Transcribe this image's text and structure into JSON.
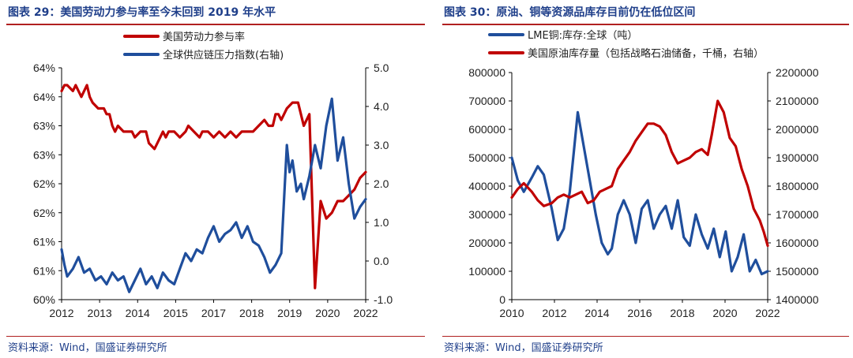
{
  "left": {
    "title": "图表 29：美国劳动力参与率至今未回到 2019 年水平",
    "source": "资料来源：Wind，国盛证券研究所",
    "chart_data": {
      "type": "line",
      "x_ticks": [
        "2012",
        "2013",
        "2014",
        "2015",
        "2017",
        "2018",
        "2019",
        "2020",
        "2022"
      ],
      "x_range": [
        2012.0,
        2022.8
      ],
      "y_left_ticks": [
        "64%",
        "64%",
        "63%",
        "63%",
        "62%",
        "62%",
        "61%",
        "61%",
        "60%"
      ],
      "y_left_range": [
        60.0,
        64.0
      ],
      "y_right_ticks": [
        "5.0",
        "4.0",
        "3.0",
        "2.0",
        "1.0",
        "0.0",
        "-1.0"
      ],
      "y_right_range": [
        -1.0,
        5.0
      ],
      "series": [
        {
          "name": "美国劳动力参与率",
          "axis": "left",
          "color": "#c00000",
          "x": [
            2012.0,
            2012.1,
            2012.2,
            2012.4,
            2012.5,
            2012.6,
            2012.7,
            2012.8,
            2012.9,
            2013.0,
            2013.1,
            2013.3,
            2013.5,
            2013.6,
            2013.7,
            2013.8,
            2013.9,
            2014.0,
            2014.2,
            2014.4,
            2014.5,
            2014.6,
            2014.8,
            2015.0,
            2015.1,
            2015.3,
            2015.5,
            2015.6,
            2015.7,
            2015.8,
            2016.0,
            2016.2,
            2016.4,
            2016.5,
            2016.7,
            2016.9,
            2017.0,
            2017.2,
            2017.4,
            2017.6,
            2017.8,
            2018.0,
            2018.2,
            2018.4,
            2018.6,
            2018.8,
            2019.0,
            2019.2,
            2019.35,
            2019.5,
            2019.6,
            2019.7,
            2019.8,
            2020.0,
            2020.2,
            2020.4,
            2020.6,
            2020.8,
            2021.0,
            2021.2,
            2021.4,
            2021.6,
            2021.8,
            2022.0,
            2022.2,
            2022.4,
            2022.6,
            2022.8
          ],
          "values": [
            63.6,
            63.7,
            63.7,
            63.6,
            63.7,
            63.6,
            63.5,
            63.6,
            63.7,
            63.5,
            63.4,
            63.3,
            63.3,
            63.2,
            63.2,
            63.0,
            62.9,
            63.0,
            62.9,
            62.9,
            62.9,
            62.8,
            62.9,
            62.9,
            62.7,
            62.6,
            62.8,
            62.9,
            62.8,
            62.9,
            62.9,
            62.8,
            62.9,
            63.0,
            62.9,
            62.8,
            62.9,
            62.9,
            62.8,
            62.9,
            62.8,
            62.9,
            62.8,
            62.9,
            62.9,
            62.9,
            63.0,
            63.1,
            63.0,
            63.0,
            63.2,
            63.2,
            63.1,
            63.3,
            63.4,
            63.4,
            63.0,
            63.2,
            60.2,
            61.7,
            61.4,
            61.5,
            61.7,
            61.7,
            61.8,
            61.9,
            62.1,
            62.2
          ]
        },
        {
          "name": "全球供应链压力指数(右轴)",
          "axis": "right",
          "color": "#1f4e9c",
          "x": [
            2012.0,
            2012.1,
            2012.2,
            2012.4,
            2012.6,
            2012.8,
            2013.0,
            2013.2,
            2013.4,
            2013.6,
            2013.8,
            2014.0,
            2014.2,
            2014.4,
            2014.6,
            2014.8,
            2015.0,
            2015.2,
            2015.4,
            2015.6,
            2015.8,
            2016.0,
            2016.2,
            2016.4,
            2016.6,
            2016.8,
            2017.0,
            2017.2,
            2017.4,
            2017.6,
            2017.8,
            2018.0,
            2018.2,
            2018.4,
            2018.6,
            2018.8,
            2019.0,
            2019.2,
            2019.4,
            2019.6,
            2019.8,
            2020.0,
            2020.1,
            2020.2,
            2020.35,
            2020.5,
            2020.6,
            2020.8,
            2021.0,
            2021.2,
            2021.4,
            2021.6,
            2021.8,
            2022.0,
            2022.2,
            2022.4,
            2022.6,
            2022.8
          ],
          "values": [
            0.3,
            -0.1,
            -0.4,
            -0.2,
            0.1,
            -0.3,
            -0.2,
            -0.5,
            -0.4,
            -0.6,
            -0.3,
            -0.5,
            -0.4,
            -0.8,
            -0.5,
            -0.2,
            -0.6,
            -0.4,
            -0.7,
            -0.3,
            -0.5,
            -0.6,
            -0.2,
            0.2,
            0.0,
            0.3,
            0.2,
            0.6,
            0.9,
            0.5,
            0.7,
            0.8,
            1.0,
            0.6,
            0.9,
            0.5,
            0.4,
            0.1,
            -0.3,
            -0.1,
            0.2,
            3.0,
            2.3,
            2.6,
            1.8,
            2.0,
            1.6,
            2.2,
            3.0,
            2.4,
            3.5,
            4.2,
            2.6,
            3.2,
            2.0,
            1.1,
            1.4,
            1.6
          ]
        }
      ]
    }
  },
  "right": {
    "title": "图表 30：原油、铜等资源品库存目前仍在低位区间",
    "source": "资料来源：Wind，国盛证券研究所",
    "chart_data": {
      "type": "line",
      "x_ticks": [
        "2010",
        "2012",
        "2014",
        "2016",
        "2018",
        "2020",
        "2022"
      ],
      "x_range": [
        2010.0,
        2022.8
      ],
      "y_left_ticks": [
        "800000",
        "700000",
        "600000",
        "500000",
        "400000",
        "300000",
        "200000",
        "100000",
        "0"
      ],
      "y_left_range": [
        0,
        800000
      ],
      "y_right_ticks": [
        "2200000",
        "2100000",
        "2000000",
        "1900000",
        "1800000",
        "1700000",
        "1600000",
        "1500000",
        "1400000"
      ],
      "y_right_range": [
        1400000,
        2200000
      ],
      "series": [
        {
          "name": "LME铜:库存:全球（吨）",
          "axis": "left",
          "color": "#1f4e9c",
          "x": [
            2010.0,
            2010.3,
            2010.6,
            2011.0,
            2011.3,
            2011.6,
            2012.0,
            2012.3,
            2012.6,
            2012.9,
            2013.1,
            2013.3,
            2013.6,
            2013.9,
            2014.2,
            2014.5,
            2014.8,
            2015.0,
            2015.3,
            2015.6,
            2015.9,
            2016.2,
            2016.5,
            2016.8,
            2017.1,
            2017.4,
            2017.7,
            2018.0,
            2018.3,
            2018.6,
            2018.9,
            2019.2,
            2019.5,
            2019.8,
            2020.1,
            2020.4,
            2020.7,
            2021.0,
            2021.3,
            2021.6,
            2021.9,
            2022.2,
            2022.5,
            2022.8
          ],
          "values": [
            500000,
            420000,
            380000,
            430000,
            470000,
            440000,
            320000,
            210000,
            250000,
            380000,
            520000,
            660000,
            540000,
            420000,
            300000,
            200000,
            160000,
            180000,
            300000,
            350000,
            300000,
            200000,
            320000,
            350000,
            250000,
            300000,
            330000,
            250000,
            350000,
            220000,
            190000,
            300000,
            230000,
            180000,
            250000,
            150000,
            240000,
            100000,
            150000,
            230000,
            100000,
            140000,
            90000,
            100000
          ]
        },
        {
          "name": "美国原油库存量（包括战略石油储备，千桶，右轴）",
          "axis": "right",
          "color": "#c00000",
          "x": [
            2010.0,
            2010.3,
            2010.6,
            2011.0,
            2011.3,
            2011.6,
            2012.0,
            2012.3,
            2012.6,
            2012.9,
            2013.2,
            2013.5,
            2013.8,
            2014.1,
            2014.4,
            2014.7,
            2015.0,
            2015.3,
            2015.6,
            2015.9,
            2016.2,
            2016.5,
            2016.8,
            2017.1,
            2017.4,
            2017.7,
            2018.0,
            2018.3,
            2018.6,
            2018.9,
            2019.2,
            2019.5,
            2019.8,
            2020.0,
            2020.3,
            2020.6,
            2020.9,
            2021.2,
            2021.5,
            2021.8,
            2022.1,
            2022.4,
            2022.6,
            2022.8
          ],
          "values": [
            1760000,
            1790000,
            1810000,
            1780000,
            1750000,
            1730000,
            1740000,
            1760000,
            1770000,
            1760000,
            1770000,
            1780000,
            1740000,
            1750000,
            1780000,
            1790000,
            1800000,
            1860000,
            1890000,
            1920000,
            1960000,
            1990000,
            2020000,
            2020000,
            2010000,
            1980000,
            1920000,
            1880000,
            1890000,
            1900000,
            1920000,
            1930000,
            1910000,
            1980000,
            2100000,
            2060000,
            1970000,
            1940000,
            1860000,
            1800000,
            1720000,
            1680000,
            1640000,
            1590000
          ]
        }
      ]
    }
  }
}
